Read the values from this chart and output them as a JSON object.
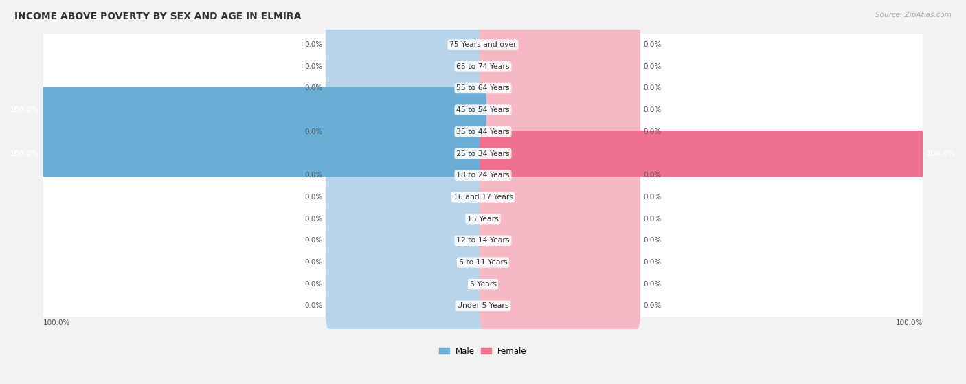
{
  "title": "INCOME ABOVE POVERTY BY SEX AND AGE IN ELMIRA",
  "source": "Source: ZipAtlas.com",
  "categories": [
    "Under 5 Years",
    "5 Years",
    "6 to 11 Years",
    "12 to 14 Years",
    "15 Years",
    "16 and 17 Years",
    "18 to 24 Years",
    "25 to 34 Years",
    "35 to 44 Years",
    "45 to 54 Years",
    "55 to 64 Years",
    "65 to 74 Years",
    "75 Years and over"
  ],
  "male_values": [
    0.0,
    0.0,
    0.0,
    0.0,
    0.0,
    0.0,
    0.0,
    100.0,
    0.0,
    100.0,
    0.0,
    0.0,
    0.0
  ],
  "female_values": [
    0.0,
    0.0,
    0.0,
    0.0,
    0.0,
    0.0,
    0.0,
    100.0,
    0.0,
    0.0,
    0.0,
    0.0,
    0.0
  ],
  "male_bg_color": "#b8d4ea",
  "female_bg_color": "#f5b8c4",
  "male_bar_color": "#6aaed6",
  "female_bar_color": "#f07090",
  "row_bg_color": "#ffffff",
  "fig_bg_color": "#f2f2f2",
  "label_color_dark": "#555555",
  "label_color_white": "#ffffff",
  "title_fontsize": 10,
  "label_fontsize": 7.5,
  "cat_fontsize": 7.8,
  "source_fontsize": 7.5
}
